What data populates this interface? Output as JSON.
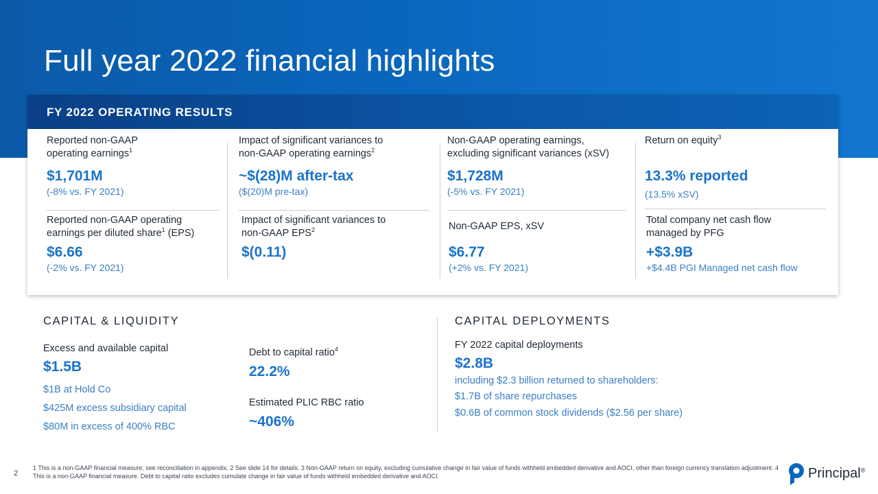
{
  "page": {
    "title": "Full year 2022 financial highlights",
    "page_number": "2"
  },
  "operating_results": {
    "title": "FY 2022 OPERATING RESULTS",
    "metrics": [
      {
        "label_1": "Reported non-GAAP",
        "label_2": "operating earnings",
        "label_sup": "1",
        "value": "$1,701M",
        "sub": "(-8% vs. FY 2021)"
      },
      {
        "label_1": "Impact of significant variances to",
        "label_2": "non-GAAP operating earnings",
        "label_sup": "2",
        "value": "~$(28)M after-tax",
        "sub": "($(20)M pre-tax)"
      },
      {
        "label_1": "Non-GAAP operating earnings,",
        "label_2": "excluding significant variances (xSV)",
        "value": "$1,728M",
        "sub": "(-5% vs. FY 2021)"
      },
      {
        "label_1": "Return on equity",
        "label_sup": "3",
        "value": "13.3% reported",
        "sub": "(13.5% xSV)"
      },
      {
        "label_1": "Reported non-GAAP operating",
        "label_2": "earnings per diluted share",
        "label_sup": "1",
        "label_tail": " (EPS)",
        "value": "$6.66",
        "sub": "(-2% vs. FY 2021)"
      },
      {
        "label_1": "Impact of significant variances to",
        "label_2": "non-GAAP EPS",
        "label_sup": "2",
        "value": "$(0.11)"
      },
      {
        "label_1": "Non-GAAP EPS, xSV",
        "value": "$6.77",
        "sub": "(+2% vs. FY 2021)"
      },
      {
        "label_1": "Total company net cash flow",
        "label_2": "managed by PFG",
        "value": "+$3.9B",
        "sub": "+$4.4B PGI Managed net cash flow"
      }
    ]
  },
  "capital_liquidity": {
    "title": "CAPITAL & LIQUIDITY",
    "excess_label": "Excess and available capital",
    "excess_value": "$1.5B",
    "excess_details": [
      "$1B at Hold Co",
      "$425M excess subsidiary capital",
      "$80M in excess of 400% RBC"
    ],
    "debt_label": "Debt to capital ratio",
    "debt_sup": "4",
    "debt_value": "22.2%",
    "rbc_label": "Estimated PLIC RBC ratio",
    "rbc_value": "~406%"
  },
  "capital_deployments": {
    "title": "CAPITAL DEPLOYMENTS",
    "label": "FY 2022 capital deployments",
    "value": "$2.8B",
    "details": [
      "including $2.3 billion returned to shareholders:",
      "$1.7B of share repurchases",
      "$0.6B of common stock dividends ($2.56 per share)"
    ]
  },
  "footnote": "1 This is a non-GAAP financial measure; see reconciliation in appendix. 2 See slide 14 for details. 3 Non-GAAP return on equity, excluding cumulative change in fair value of funds withheld embedded derivative and AOCI, other than foreign currency translation adjustment. 4 This is a non-GAAP financial measure. Debt to capital ratio excludes cumulate change in fair value of funds withheld embedded derivative and AOCI.",
  "logo": {
    "text": "Principal",
    "mark": "®",
    "brand_color": "#0a66bd"
  }
}
